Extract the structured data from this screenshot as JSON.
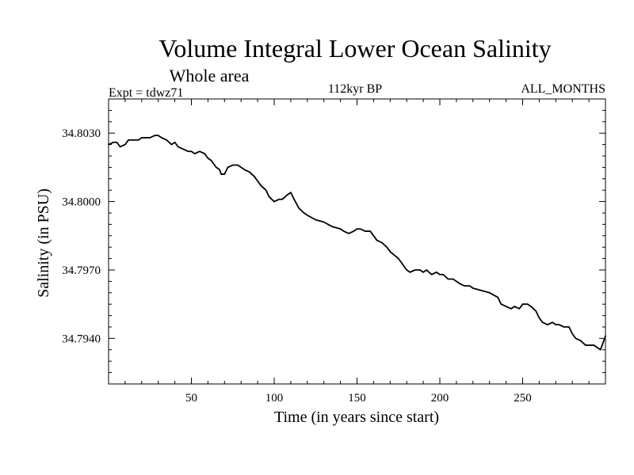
{
  "chart_data": {
    "type": "line",
    "title": "Volume Integral Lower Ocean Salinity",
    "subtitle": "Whole area",
    "experiment_label": "Expt = tdwz71",
    "period_label": "112kyr BP",
    "months_label": "ALL_MONTHS",
    "xlabel": "Time (in years since start)",
    "ylabel": "Salinity (in PSU)",
    "xlim": [
      0,
      300
    ],
    "ylim": [
      34.792,
      34.8045
    ],
    "x_ticks": [
      50,
      100,
      150,
      200,
      250
    ],
    "x_tick_labels": [
      "50",
      "100",
      "150",
      "200",
      "250"
    ],
    "y_ticks": [
      34.803,
      34.8,
      34.797,
      34.794
    ],
    "y_tick_labels": [
      "34.8030",
      "34.8000",
      "34.7970",
      "34.7940"
    ],
    "grid": false,
    "series": [
      {
        "name": "Volume Integral Lower Ocean Salinity",
        "color": "#000000",
        "x": [
          0,
          3,
          5,
          7,
          10,
          12,
          15,
          18,
          20,
          22,
          25,
          28,
          30,
          32,
          35,
          38,
          40,
          42,
          45,
          48,
          50,
          52,
          55,
          58,
          60,
          62,
          65,
          67,
          68,
          70,
          72,
          75,
          78,
          80,
          82,
          85,
          88,
          90,
          92,
          95,
          97,
          100,
          103,
          105,
          108,
          110,
          112,
          115,
          118,
          120,
          125,
          130,
          135,
          140,
          142,
          145,
          148,
          150,
          152,
          155,
          158,
          160,
          162,
          165,
          168,
          170,
          175,
          178,
          180,
          182,
          185,
          188,
          190,
          192,
          195,
          198,
          200,
          202,
          205,
          208,
          210,
          212,
          215,
          218,
          220,
          225,
          230,
          235,
          237,
          240,
          243,
          245,
          248,
          250,
          253,
          255,
          258,
          260,
          262,
          265,
          268,
          270,
          272,
          275,
          278,
          280,
          282,
          285,
          288,
          290,
          293,
          295,
          297,
          298,
          299,
          300
        ],
        "values": [
          34.8025,
          34.8026,
          34.8026,
          34.8024,
          34.8025,
          34.8027,
          34.8027,
          34.8027,
          34.8028,
          34.8028,
          34.8028,
          34.8029,
          34.8029,
          34.8028,
          34.8027,
          34.8025,
          34.8026,
          34.8024,
          34.8023,
          34.8022,
          34.8022,
          34.8021,
          34.8022,
          34.8021,
          34.8019,
          34.8018,
          34.8015,
          34.8014,
          34.8012,
          34.8012,
          34.8015,
          34.8016,
          34.8016,
          34.8015,
          34.8014,
          34.8013,
          34.8011,
          34.8009,
          34.8007,
          34.8005,
          34.8002,
          34.8,
          34.8001,
          34.8001,
          34.8003,
          34.8004,
          34.8001,
          34.7997,
          34.7995,
          34.7994,
          34.7992,
          34.7991,
          34.7989,
          34.7988,
          34.7987,
          34.7986,
          34.7987,
          34.7988,
          34.7988,
          34.7987,
          34.7987,
          34.7985,
          34.7983,
          34.7982,
          34.798,
          34.7978,
          34.7975,
          34.7972,
          34.797,
          34.7969,
          34.797,
          34.797,
          34.7969,
          34.797,
          34.7968,
          34.7969,
          34.7968,
          34.7968,
          34.7966,
          34.7966,
          34.7965,
          34.7964,
          34.7963,
          34.7963,
          34.7962,
          34.7961,
          34.796,
          34.7958,
          34.7955,
          34.7954,
          34.7953,
          34.7954,
          34.7953,
          34.7955,
          34.7955,
          34.7954,
          34.7952,
          34.7949,
          34.7947,
          34.7946,
          34.7947,
          34.7946,
          34.7946,
          34.7945,
          34.7945,
          34.7942,
          34.794,
          34.7939,
          34.7937,
          34.7937,
          34.7937,
          34.7936,
          34.7935,
          34.7937,
          34.7939,
          34.7941
        ]
      }
    ]
  }
}
